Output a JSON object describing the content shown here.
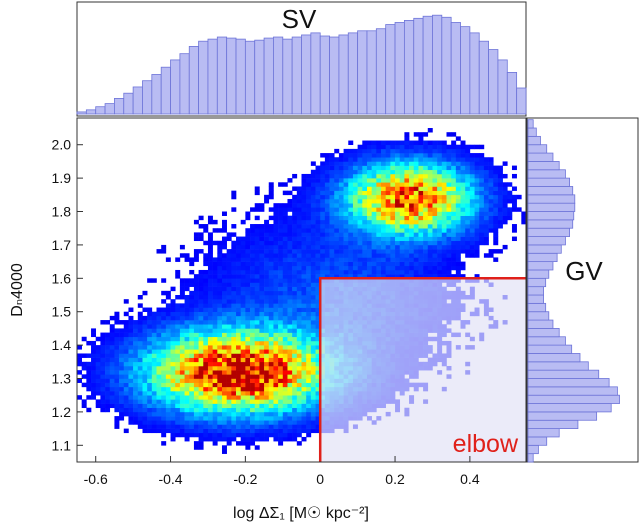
{
  "chart_data": {
    "type": "heatmap",
    "subtype": "2d-histogram-with-marginal-histograms",
    "xlabel": "log ΔΣ₁ [M☉ kpc⁻²]",
    "ylabel": "Dₙ4000",
    "xlim": [
      -0.65,
      0.55
    ],
    "ylim": [
      1.05,
      2.08
    ],
    "x_ticks": [
      -0.6,
      -0.4,
      -0.2,
      0.0,
      0.2,
      0.4
    ],
    "x_tick_labels": [
      "-0.6",
      "-0.4",
      "-0.2",
      "0",
      "0.2",
      "0.4"
    ],
    "y_ticks": [
      1.1,
      1.2,
      1.3,
      1.4,
      1.5,
      1.6,
      1.7,
      1.8,
      1.9,
      2.0
    ],
    "y_tick_labels": [
      "1.1",
      "1.2",
      "1.3",
      "1.4",
      "1.5",
      "1.6",
      "1.7",
      "1.8",
      "1.9",
      "2.0"
    ],
    "colormap": "jet",
    "grid": false,
    "density_clusters": [
      {
        "x_center": -0.22,
        "y_center": 1.32,
        "x_sigma": 0.16,
        "y_sigma": 0.08,
        "relative_peak": 1.0
      },
      {
        "x_center": 0.24,
        "y_center": 1.84,
        "x_sigma": 0.11,
        "y_sigma": 0.07,
        "relative_peak": 0.85
      },
      {
        "x_center": 0.02,
        "y_center": 1.55,
        "x_sigma": 0.22,
        "y_sigma": 0.16,
        "relative_peak": 0.12
      }
    ],
    "top_histogram": {
      "label": "SV",
      "bin_edges_start": -0.65,
      "bin_width": 0.025,
      "relative_counts": [
        0.02,
        0.04,
        0.07,
        0.1,
        0.15,
        0.2,
        0.26,
        0.32,
        0.38,
        0.45,
        0.52,
        0.58,
        0.65,
        0.7,
        0.72,
        0.74,
        0.73,
        0.72,
        0.7,
        0.71,
        0.73,
        0.74,
        0.72,
        0.74,
        0.76,
        0.78,
        0.75,
        0.74,
        0.76,
        0.78,
        0.8,
        0.8,
        0.82,
        0.86,
        0.88,
        0.9,
        0.92,
        0.94,
        0.95,
        0.93,
        0.88,
        0.84,
        0.78,
        0.7,
        0.62,
        0.52,
        0.4,
        0.25
      ]
    },
    "right_histogram": {
      "label": "GV",
      "bin_edges_start": 1.05,
      "bin_width": 0.025,
      "relative_counts": [
        0.05,
        0.1,
        0.18,
        0.3,
        0.48,
        0.66,
        0.8,
        0.88,
        0.86,
        0.78,
        0.68,
        0.58,
        0.5,
        0.42,
        0.36,
        0.3,
        0.24,
        0.2,
        0.17,
        0.15,
        0.15,
        0.17,
        0.2,
        0.24,
        0.28,
        0.32,
        0.36,
        0.4,
        0.43,
        0.44,
        0.45,
        0.45,
        0.43,
        0.4,
        0.36,
        0.3,
        0.24,
        0.18,
        0.12,
        0.08,
        0.05
      ]
    },
    "annotations": [
      {
        "text": "elbow",
        "region": {
          "x_from": 0.0,
          "x_to": 0.55,
          "y_from": 1.05,
          "y_to": 1.6
        },
        "color": "#e0201a"
      }
    ]
  },
  "colors": {
    "histogram_fill": "#b9bcf3",
    "histogram_edge": "#6d74d8",
    "elbow_region": "#e0201a",
    "faded_overlay": "#e3e3f6"
  }
}
